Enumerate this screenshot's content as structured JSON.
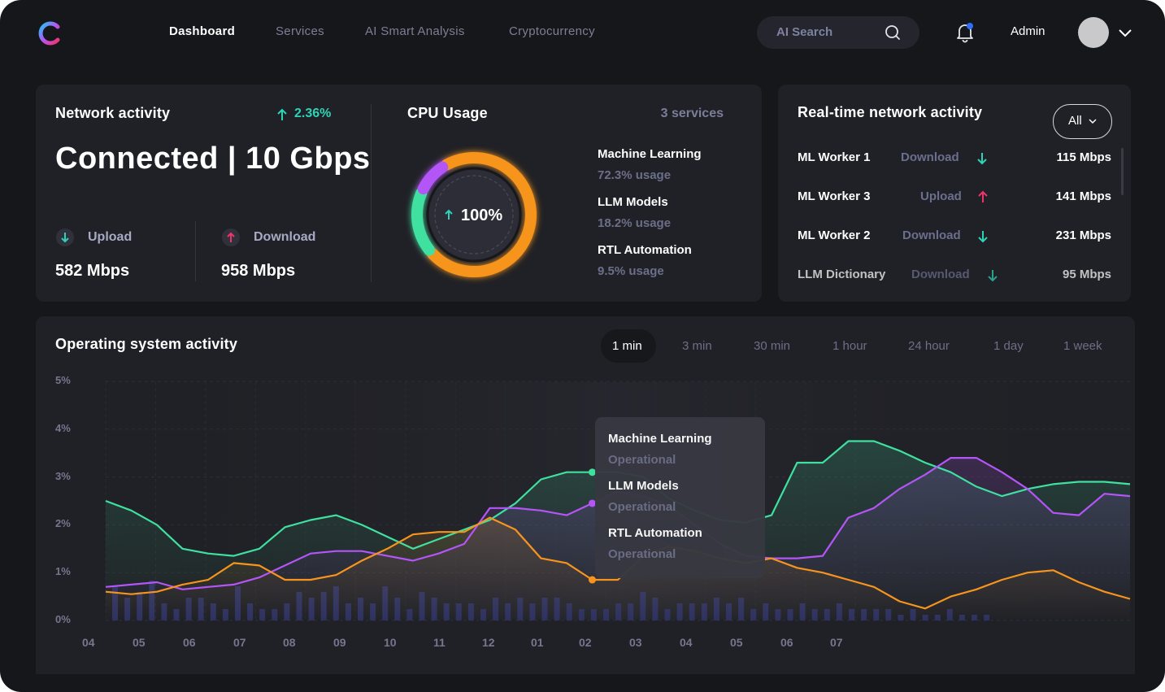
{
  "nav": {
    "items": [
      "Dashboard",
      "Services",
      "AI Smart Analysis",
      "Cryptocurrency"
    ],
    "search_label": "AI Search",
    "user": "Admin"
  },
  "network": {
    "title": "Network activity",
    "change": "2.36%",
    "status": "Connected | 10 Gbps",
    "upload_label": "Upload",
    "upload_value": "582 Mbps",
    "download_label": "Download",
    "download_value": "958 Mbps"
  },
  "cpu": {
    "title": "CPU Usage",
    "services_count": "3 services",
    "center_value": "100%",
    "services": [
      {
        "name": "Machine Learning",
        "usage": "72.3% usage",
        "pct": 72.3,
        "color": "#f7941d"
      },
      {
        "name": "LLM Models",
        "usage": "18.2% usage",
        "pct": 18.2,
        "color": "#3fe0a0"
      },
      {
        "name": "RTL Automation",
        "usage": "9.5% usage",
        "pct": 9.5,
        "color": "#b455f7"
      }
    ]
  },
  "realtime": {
    "title": "Real-time network activity",
    "filter": "All",
    "rows": [
      {
        "name": "ML Worker 1",
        "direction": "Download",
        "speed": "115 Mbps"
      },
      {
        "name": "ML Worker 3",
        "direction": "Upload",
        "speed": "141 Mbps"
      },
      {
        "name": "ML Worker 2",
        "direction": "Download",
        "speed": "231 Mbps"
      },
      {
        "name": "LLM Dictionary",
        "direction": "Download",
        "speed": "95 Mbps"
      }
    ]
  },
  "os": {
    "title": "Operating system activity",
    "tabs": [
      "1 min",
      "3 min",
      "30 min",
      "1 hour",
      "24 hour",
      "1 day",
      "1 week"
    ],
    "active_tab": "1 min",
    "tooltip": [
      {
        "name": "Machine Learning",
        "status": "Operational"
      },
      {
        "name": "LLM Models",
        "status": "Operational"
      },
      {
        "name": "RTL Automation",
        "status": "Operational"
      }
    ]
  },
  "colors": {
    "green": "#3fe0a0",
    "purple": "#b455f7",
    "orange": "#f7941d",
    "accent_up": "#2ed3b7",
    "accent_down": "#f0346b"
  },
  "chart_data": {
    "type": "line",
    "title": "",
    "ylim": [
      0,
      5
    ],
    "y_ticks": [
      "0%",
      "1%",
      "2%",
      "3%",
      "4%",
      "5%"
    ],
    "x_ticks": [
      "04",
      "05",
      "06",
      "07",
      "08",
      "09",
      "10",
      "11",
      "12",
      "01",
      "02",
      "03",
      "04",
      "05",
      "06",
      "07"
    ],
    "x": [
      0,
      0.5,
      1,
      1.5,
      2,
      2.5,
      3,
      3.5,
      4,
      4.5,
      5,
      5.5,
      6,
      6.5,
      7,
      7.5,
      8,
      8.5,
      9,
      9.5,
      10,
      10.5,
      11,
      11.5,
      12,
      12.5,
      13,
      13.5,
      14,
      14.5,
      15,
      15.5,
      16,
      16.5,
      17,
      17.5,
      18,
      18.5,
      19,
      19.5,
      20
    ],
    "series": [
      {
        "values": [
          2.5,
          2.3,
          2.0,
          1.5,
          1.4,
          1.35,
          1.5,
          1.95,
          2.1,
          2.2,
          2.0,
          1.75,
          1.5,
          1.7,
          1.9,
          2.1,
          2.45,
          2.95,
          3.1,
          3.1,
          3.1,
          3.0,
          2.55,
          2.3,
          2.1,
          2.05,
          2.2,
          3.3,
          3.3,
          3.75,
          3.75,
          3.55,
          3.3,
          3.1,
          2.8,
          2.6,
          2.75,
          2.85,
          2.9,
          2.9,
          2.85
        ]
      },
      {
        "values": [
          0.7,
          0.75,
          0.8,
          0.65,
          0.7,
          0.75,
          0.9,
          1.15,
          1.4,
          1.45,
          1.45,
          1.35,
          1.25,
          1.4,
          1.6,
          2.35,
          2.35,
          2.3,
          2.2,
          2.45,
          2.7,
          2.6,
          2.4,
          2.0,
          1.6,
          1.35,
          1.3,
          1.3,
          1.35,
          2.15,
          2.35,
          2.75,
          3.05,
          3.4,
          3.4,
          3.1,
          2.75,
          2.25,
          2.2,
          2.65,
          2.6
        ]
      },
      {
        "values": [
          0.6,
          0.55,
          0.6,
          0.75,
          0.85,
          1.2,
          1.15,
          0.85,
          0.85,
          0.95,
          1.25,
          1.5,
          1.8,
          1.85,
          1.85,
          2.15,
          1.9,
          1.3,
          1.2,
          0.85,
          0.85,
          1.35,
          1.55,
          1.45,
          1.3,
          1.2,
          1.3,
          1.1,
          1.0,
          0.85,
          0.7,
          0.4,
          0.25,
          0.5,
          0.65,
          0.85,
          1.0,
          1.05,
          0.8,
          0.6,
          0.45
        ]
      }
    ],
    "activity_bars": [
      0.6,
      0.4,
      0.5,
      0.7,
      0.3,
      0.2,
      0.4,
      0.4,
      0.3,
      0.2,
      0.6,
      0.3,
      0.2,
      0.2,
      0.3,
      0.5,
      0.4,
      0.5,
      0.6,
      0.3,
      0.4,
      0.3,
      0.6,
      0.4,
      0.2,
      0.5,
      0.4,
      0.3,
      0.3,
      0.3,
      0.2,
      0.4,
      0.3,
      0.4,
      0.3,
      0.4,
      0.4,
      0.3,
      0.2,
      0.2,
      0.2,
      0.3,
      0.3,
      0.5,
      0.4,
      0.2,
      0.3,
      0.3,
      0.3,
      0.4,
      0.3,
      0.4,
      0.2,
      0.3,
      0.2,
      0.2,
      0.3,
      0.2,
      0.2,
      0.3,
      0.2,
      0.2,
      0.2,
      0.2,
      0.1,
      0.2,
      0.1,
      0.1,
      0.2,
      0.1,
      0.1,
      0.1
    ]
  }
}
